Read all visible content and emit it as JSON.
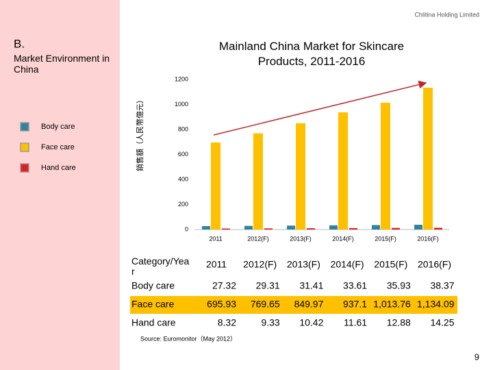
{
  "header": {
    "company": "Chlitina Holding Limited",
    "section": "B.",
    "subtitle": "Market Environment in China"
  },
  "chart_data": {
    "type": "bar",
    "title": "Mainland China Market for Skincare Products, 2011-2016",
    "y_label": "銷售額（人民幣億元）",
    "categories": [
      "2011",
      "2012(F)",
      "2013(F)",
      "2014(F)",
      "2015(F)",
      "2016(F)"
    ],
    "series": [
      {
        "name": "Body care",
        "color": "#31849b",
        "values": [
          27.32,
          29.31,
          31.41,
          33.61,
          35.93,
          38.37
        ]
      },
      {
        "name": "Face care",
        "color": "#ffc000",
        "values": [
          695.93,
          769.65,
          849.97,
          937.1,
          1013.76,
          1134.09
        ],
        "value_labels": [
          "695.93",
          "769.65",
          "849.97",
          "937.1",
          "1,013.76",
          "1,134.09"
        ]
      },
      {
        "name": "Hand care",
        "color": "#e02020",
        "values": [
          8.32,
          9.33,
          10.42,
          11.61,
          12.88,
          14.25
        ]
      }
    ],
    "ylim": [
      0,
      1200
    ],
    "yticks": [
      0,
      200,
      400,
      600,
      800,
      1000,
      1200
    ],
    "grid": false
  },
  "table": {
    "corner": "Category/Year"
  },
  "source": "Source: Euromonitor（May 2012）",
  "page_number": "9"
}
